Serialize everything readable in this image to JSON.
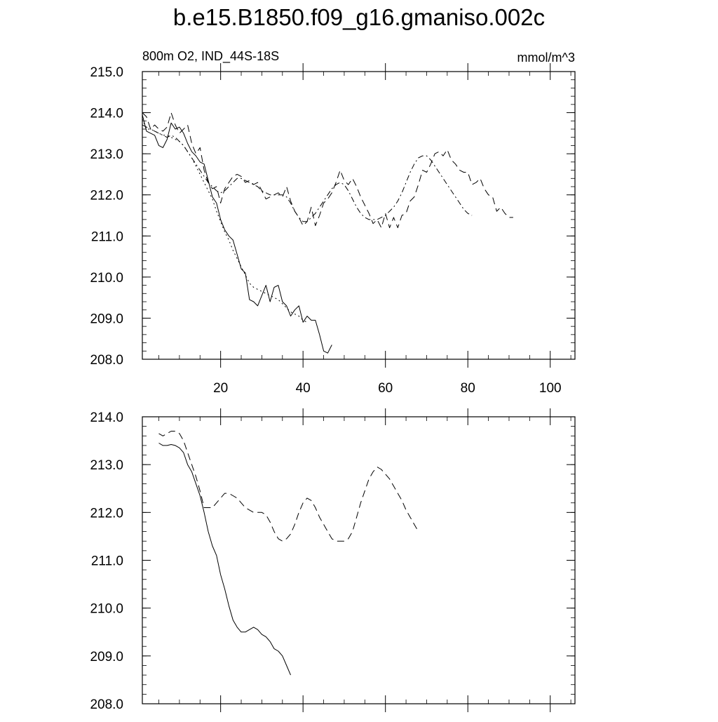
{
  "title": "b.e15.B1850.f09_g16.gmaniso.002c",
  "chart_data": [
    {
      "type": "line",
      "subtitle_left": "800m O2, IND_44S-18S",
      "subtitle_right": "mmol/m^3",
      "xlim": [
        1,
        106
      ],
      "ylim": [
        208.0,
        215.0
      ],
      "x_ticks": [
        20,
        40,
        60,
        80,
        100
      ],
      "x_tick_labels": [
        "20",
        "40",
        "60",
        "80",
        "100"
      ],
      "y_ticks": [
        208.0,
        209.0,
        210.0,
        211.0,
        212.0,
        213.0,
        214.0,
        215.0
      ],
      "y_tick_labels": [
        "208.0",
        "209.0",
        "210.0",
        "211.0",
        "212.0",
        "213.0",
        "214.0",
        "215.0"
      ],
      "grid": false,
      "series": [
        {
          "style": "solid",
          "x_start": 1,
          "values": [
            213.95,
            213.55,
            213.5,
            213.45,
            213.2,
            213.15,
            213.35,
            213.75,
            213.6,
            213.65,
            213.5,
            213.25,
            213.05,
            212.95,
            212.8,
            212.75,
            212.35,
            211.95,
            211.8,
            211.4,
            211.15,
            211.0,
            210.9,
            210.55,
            210.2,
            210.1,
            209.45,
            209.4,
            209.3,
            209.55,
            209.8,
            209.4,
            209.75,
            209.8,
            209.4,
            209.3,
            209.05,
            209.2,
            209.3,
            208.9,
            209.05,
            208.95,
            208.95,
            208.6,
            208.2,
            208.15,
            208.35
          ]
        },
        {
          "style": "dotted",
          "x_start": 1,
          "values": [
            213.85,
            213.6,
            213.6,
            213.55,
            213.5,
            213.45,
            213.45,
            213.4,
            213.35,
            213.3,
            213.2,
            213.05,
            212.9,
            212.7,
            212.5,
            212.3,
            212.1,
            211.9,
            211.6,
            211.35,
            211.1,
            210.9,
            210.65,
            210.45,
            210.25,
            210.05,
            209.85,
            209.75,
            209.7,
            209.65,
            209.6,
            209.55,
            209.5,
            209.45,
            209.35,
            209.25,
            209.15,
            209.1,
            209.05,
            208.95,
            208.9
          ]
        },
        {
          "style": "dashed",
          "x_start": 1,
          "values": [
            214.0,
            213.9,
            213.6,
            213.7,
            213.6,
            213.55,
            213.65,
            214.0,
            213.7,
            213.5,
            213.6,
            213.7,
            213.25,
            213.0,
            213.15,
            212.6,
            212.3,
            212.15,
            212.2,
            211.8,
            212.15,
            212.3,
            212.45,
            212.5,
            212.45,
            212.3,
            212.35,
            212.25,
            212.3,
            212.1,
            211.9,
            211.95,
            212.0,
            212.05,
            211.95,
            212.2,
            211.85,
            211.6,
            211.45,
            211.25,
            211.35,
            211.7,
            211.25,
            211.5,
            211.8,
            211.9,
            212.05,
            212.3,
            212.6,
            212.35,
            212.25,
            212.4,
            212.2,
            211.95,
            211.75,
            211.55,
            211.3,
            211.4,
            211.2,
            211.55,
            211.2,
            211.45,
            211.2,
            211.5,
            211.55,
            211.85,
            211.95,
            212.25,
            212.6,
            212.55,
            212.75,
            213.0,
            213.05,
            212.95,
            213.1,
            212.85,
            212.75,
            212.6,
            212.55,
            212.55,
            212.25,
            212.3,
            212.4,
            212.15,
            212.0,
            211.95,
            211.6,
            211.7,
            211.55,
            211.45,
            211.45
          ]
        },
        {
          "style": "dashdot",
          "x_start": 1,
          "values": [
            213.7,
            213.65,
            213.6,
            213.55,
            213.5,
            213.45,
            213.4,
            213.45,
            213.4,
            213.3,
            213.2,
            213.05,
            212.9,
            212.75,
            212.6,
            212.45,
            212.3,
            212.2,
            212.1,
            212.05,
            212.1,
            212.2,
            212.3,
            212.4,
            212.4,
            212.35,
            212.3,
            212.25,
            212.2,
            212.1,
            212.05,
            212.0,
            212.0,
            212.0,
            212.0,
            211.95,
            211.8,
            211.6,
            211.45,
            211.35,
            211.35,
            211.45,
            211.55,
            211.7,
            211.85,
            212.0,
            212.15,
            212.25,
            212.3,
            212.25,
            212.1,
            211.9,
            211.7,
            211.55,
            211.45,
            211.4,
            211.4,
            211.4,
            211.45,
            211.5,
            211.6,
            211.7,
            211.85,
            212.05,
            212.3,
            212.55,
            212.75,
            212.9,
            212.95,
            212.95,
            212.85,
            212.7,
            212.55,
            212.4,
            212.25,
            212.1,
            211.95,
            211.8,
            211.65,
            211.55,
            211.5
          ]
        }
      ]
    },
    {
      "type": "line",
      "xlim": [
        1,
        106
      ],
      "ylim": [
        208.0,
        214.0
      ],
      "x_ticks": [
        20,
        40,
        60,
        80,
        100
      ],
      "y_ticks": [
        208.0,
        209.0,
        210.0,
        211.0,
        212.0,
        213.0,
        214.0
      ],
      "y_tick_labels": [
        "208.0",
        "209.0",
        "210.0",
        "211.0",
        "212.0",
        "213.0",
        "214.0"
      ],
      "grid": false,
      "series": [
        {
          "style": "solid",
          "x_start": 5,
          "values": [
            213.45,
            213.4,
            213.4,
            213.42,
            213.4,
            213.35,
            213.25,
            213.0,
            212.85,
            212.6,
            212.35,
            212.0,
            211.6,
            211.3,
            211.1,
            210.7,
            210.4,
            210.05,
            209.75,
            209.6,
            209.5,
            209.5,
            209.55,
            209.6,
            209.55,
            209.45,
            209.4,
            209.3,
            209.15,
            209.1,
            209.0,
            208.8,
            208.6
          ]
        },
        {
          "style": "dashed",
          "x_start": 5,
          "values": [
            213.65,
            213.6,
            213.65,
            213.7,
            213.7,
            213.65,
            213.5,
            213.25,
            213.0,
            212.75,
            212.45,
            212.1,
            212.1,
            212.1,
            212.2,
            212.3,
            212.4,
            212.4,
            212.35,
            212.3,
            212.2,
            212.1,
            212.05,
            212.0,
            212.0,
            212.0,
            211.95,
            211.8,
            211.6,
            211.45,
            211.4,
            211.45,
            211.55,
            211.75,
            212.0,
            212.2,
            212.3,
            212.25,
            212.1,
            211.9,
            211.75,
            211.6,
            211.45,
            211.4,
            211.4,
            211.4,
            211.45,
            211.6,
            211.9,
            212.2,
            212.45,
            212.7,
            212.85,
            212.95,
            212.9,
            212.8,
            212.7,
            212.55,
            212.4,
            212.25,
            212.05,
            211.9,
            211.75,
            211.6
          ]
        }
      ]
    }
  ]
}
